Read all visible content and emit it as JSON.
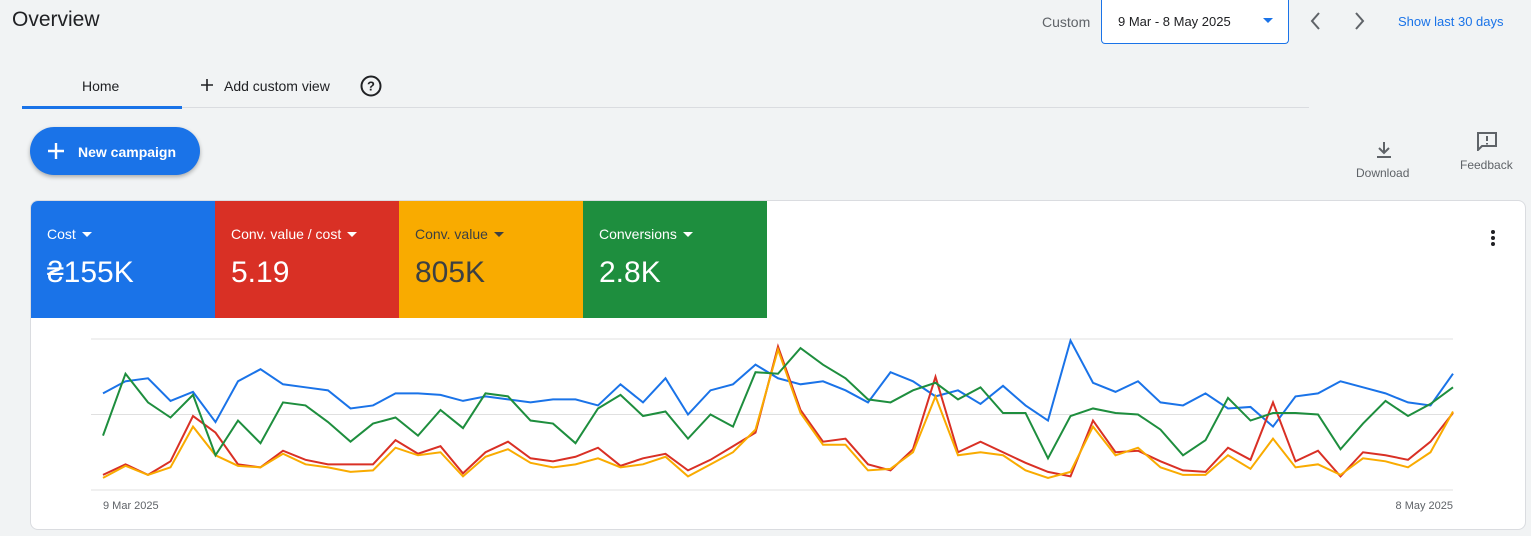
{
  "header": {
    "title": "Overview",
    "date_label": "Custom",
    "date_range": "9 Mar - 8 May 2025",
    "show_last": "Show last 30 days"
  },
  "tabs": [
    "Home",
    "Add custom view"
  ],
  "button": "New campaign",
  "actions": [
    "Download",
    "Feedback"
  ],
  "chart_data": {
    "type": "line",
    "categories": [
      "9 Mar 2025",
      null,
      null,
      null,
      null,
      null,
      null,
      null,
      null,
      null,
      null,
      null,
      null,
      null,
      null,
      null,
      null,
      null,
      null,
      null,
      null,
      null,
      null,
      null,
      null,
      null,
      null,
      null,
      null,
      null,
      null,
      null,
      null,
      null,
      null,
      null,
      null,
      null,
      null,
      null,
      null,
      null,
      null,
      null,
      null,
      null,
      null,
      null,
      null,
      null,
      null,
      null,
      null,
      null,
      null,
      null,
      null,
      null,
      null,
      null,
      "8 May 2025"
    ],
    "ylim": [
      0,
      100
    ],
    "ygrid": [
      0,
      50,
      100
    ],
    "series": [
      {
        "name": "Cost",
        "total": "₴155K",
        "color": "#1a73e8",
        "values": [
          64,
          72,
          74,
          59,
          65,
          45,
          72,
          80,
          70,
          68,
          66,
          54,
          56,
          64,
          64,
          63,
          59,
          62,
          60,
          58,
          60,
          60,
          56,
          70,
          58,
          74,
          50,
          66,
          70,
          83,
          74,
          70,
          72,
          66,
          58,
          78,
          72,
          62,
          66,
          57,
          69,
          56,
          46,
          99,
          71,
          65,
          72,
          58,
          56,
          64,
          54,
          55,
          42,
          62,
          64,
          72,
          68,
          64,
          58,
          56,
          77
        ]
      },
      {
        "name": "Conv. value / cost",
        "total": "5.19",
        "color": "#d93025",
        "values": [
          10,
          17,
          10,
          19,
          49,
          38,
          17,
          15,
          26,
          20,
          17,
          17,
          17,
          33,
          24,
          29,
          11,
          25,
          32,
          21,
          19,
          22,
          28,
          16,
          21,
          24,
          13,
          20,
          29,
          38,
          95,
          53,
          32,
          34,
          17,
          13,
          27,
          75,
          25,
          32,
          25,
          18,
          12,
          9,
          46,
          25,
          26,
          19,
          13,
          12,
          28,
          20,
          58,
          19,
          26,
          9,
          25,
          23,
          20,
          32,
          51
        ]
      },
      {
        "name": "Conv. value",
        "total": "805K",
        "color": "#f9ab00",
        "values": [
          8,
          16,
          10,
          15,
          42,
          23,
          16,
          15,
          24,
          17,
          15,
          12,
          13,
          28,
          23,
          25,
          9,
          22,
          27,
          18,
          15,
          17,
          21,
          15,
          17,
          22,
          9,
          17,
          25,
          40,
          93,
          51,
          30,
          30,
          13,
          14,
          25,
          62,
          23,
          25,
          23,
          13,
          8,
          12,
          42,
          23,
          28,
          15,
          10,
          10,
          23,
          14,
          34,
          15,
          17,
          10,
          21,
          19,
          15,
          25,
          52
        ]
      },
      {
        "name": "Conversions",
        "total": "2.8K",
        "color": "#1e8e3e",
        "values": [
          36,
          77,
          58,
          48,
          63,
          23,
          46,
          31,
          58,
          56,
          45,
          32,
          44,
          48,
          36,
          53,
          41,
          64,
          62,
          46,
          44,
          31,
          54,
          63,
          49,
          52,
          34,
          50,
          42,
          78,
          77,
          94,
          83,
          74,
          60,
          58,
          66,
          71,
          60,
          68,
          51,
          51,
          21,
          49,
          54,
          51,
          50,
          40,
          23,
          33,
          61,
          46,
          51,
          51,
          50,
          27,
          44,
          59,
          49,
          57,
          68
        ]
      }
    ]
  }
}
